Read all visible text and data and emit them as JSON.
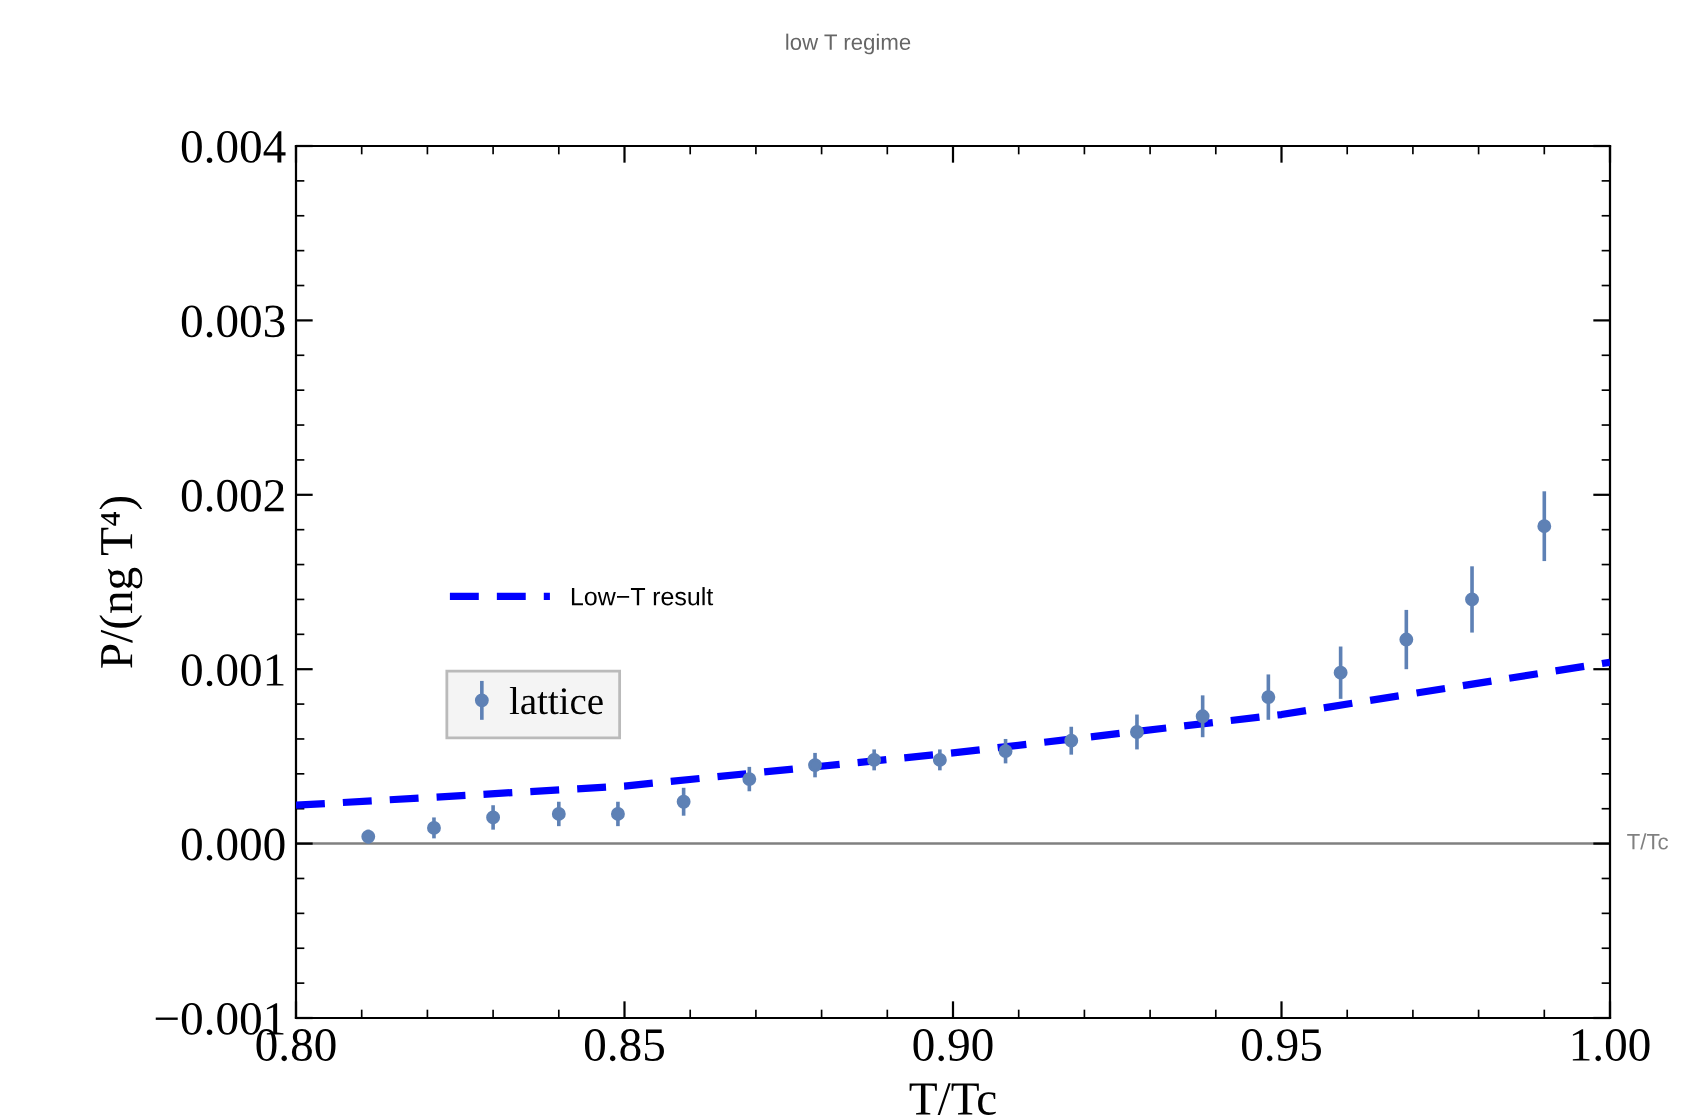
{
  "chart_data": {
    "type": "scatter",
    "title": "low T regime",
    "xlabel": "T/Tc",
    "ylabel": "P/(ng T⁴)",
    "xlim": [
      0.8,
      1.0
    ],
    "ylim": [
      -0.001,
      0.004
    ],
    "xticks": [
      {
        "value": 0.8,
        "label": "0.80"
      },
      {
        "value": 0.85,
        "label": "0.85"
      },
      {
        "value": 0.9,
        "label": "0.90"
      },
      {
        "value": 0.95,
        "label": "0.95"
      },
      {
        "value": 1.0,
        "label": "1.00"
      }
    ],
    "yticks": [
      {
        "value": -0.001,
        "label": "−0.001"
      },
      {
        "value": 0,
        "label": "0.000"
      },
      0.001,
      0.002,
      0.003,
      0.004
    ],
    "legend": "left",
    "ref_lines": [
      {
        "axis": "y",
        "value": 0,
        "label": "T/Tc",
        "color": "#808080"
      }
    ],
    "series": [
      {
        "name": "Low−T result",
        "type": "line",
        "line_style": "dashed",
        "color": "#0000ff",
        "x": [
          0.8,
          0.85,
          0.9,
          0.95,
          1.0
        ],
        "values": [
          0.00022,
          0.00033,
          0.00052,
          0.00074,
          0.00104
        ]
      },
      {
        "name": "lattice",
        "marker": "circle",
        "color": "#5e81b5",
        "x": [
          0.811,
          0.821,
          0.83,
          0.84,
          0.849,
          0.859,
          0.869,
          0.879,
          0.888,
          0.898,
          0.908,
          0.918,
          0.928,
          0.938,
          0.948,
          0.959,
          0.969,
          0.979,
          0.99
        ],
        "values": [
          4e-05,
          9e-05,
          0.00015,
          0.00017,
          0.00017,
          0.00024,
          0.00037,
          0.00045,
          0.00048,
          0.00048,
          0.00053,
          0.00059,
          0.00064,
          0.00073,
          0.00084,
          0.00098,
          0.00117,
          0.0014,
          0.00182
        ],
        "errors": [
          4e-05,
          6e-05,
          7e-05,
          7e-05,
          7e-05,
          8e-05,
          7e-05,
          7e-05,
          6e-05,
          6e-05,
          7e-05,
          8e-05,
          0.0001,
          0.00012,
          0.00013,
          0.00015,
          0.00017,
          0.00019,
          0.0002
        ]
      }
    ]
  }
}
